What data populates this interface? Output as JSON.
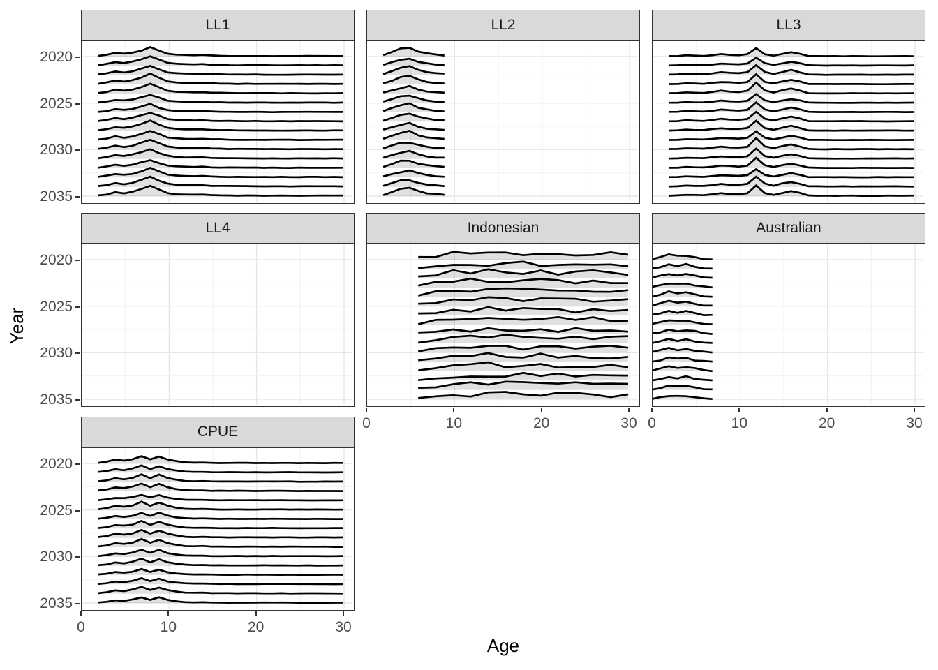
{
  "figure": {
    "background": "#ffffff",
    "x_axis_title": "Age",
    "y_axis_title": "Year"
  },
  "style": {
    "strip_bg": "#d9d9d9",
    "panel_border": "#333333",
    "grid_major": "#e7e7e7",
    "grid_minor": "#f3f3f3",
    "tick_mark_color": "#333333",
    "tick_label_color": "#4d4d4d",
    "ridge_stroke": "#000000",
    "ridge_fill": "rgba(0,0,0,0.12)"
  },
  "chart_data": {
    "type": "ridgeline",
    "title": "",
    "xlabel": "Age",
    "ylabel": "Year",
    "xlim": [
      0,
      30
    ],
    "x_ticks": [
      0,
      10,
      20,
      30
    ],
    "y_ticks": [
      2020,
      2025,
      2030,
      2035
    ],
    "grid": true,
    "years": [
      2020,
      2021,
      2022,
      2023,
      2024,
      2025,
      2026,
      2027,
      2028,
      2029,
      2030,
      2031,
      2032,
      2033,
      2034,
      2035
    ],
    "facet_layout": "3 columns, rows: [LL1, LL2, LL3], [LL4, Indonesian, Australian], [CPUE]",
    "facets": [
      {
        "label": "LL1",
        "row": 0,
        "col": 0,
        "show_y_axis": true,
        "show_x_axis": false,
        "age_min": 2,
        "age_step": 1,
        "noise": 0.06,
        "base": [
          0.06,
          0.18,
          0.38,
          0.28,
          0.42,
          0.68,
          1.0,
          0.62,
          0.3,
          0.2,
          0.16,
          0.14,
          0.17,
          0.11,
          0.09,
          0.07,
          0.06,
          0.06,
          0.06,
          0.05,
          0.05,
          0.05,
          0.05,
          0.05,
          0.05,
          0.05,
          0.05,
          0.05,
          0.05
        ]
      },
      {
        "label": "LL2",
        "row": 0,
        "col": 1,
        "show_y_axis": false,
        "show_x_axis": false,
        "age_min": 2,
        "age_step": 1,
        "noise": 0.09,
        "base": [
          0.12,
          0.4,
          0.72,
          0.8,
          0.5,
          0.28,
          0.18,
          0.12
        ]
      },
      {
        "label": "LL3",
        "row": 0,
        "col": 2,
        "show_y_axis": false,
        "show_x_axis": false,
        "age_min": 2,
        "age_step": 1,
        "noise": 0.05,
        "base": [
          0.04,
          0.06,
          0.14,
          0.1,
          0.08,
          0.18,
          0.28,
          0.22,
          0.18,
          0.28,
          1.05,
          0.3,
          0.12,
          0.32,
          0.5,
          0.3,
          0.06,
          0.04,
          0.04,
          0.04,
          0.04,
          0.04,
          0.04,
          0.04,
          0.04,
          0.04,
          0.04,
          0.04,
          0.04
        ]
      },
      {
        "label": "LL4",
        "row": 1,
        "col": 0,
        "show_y_axis": true,
        "show_x_axis": false,
        "age_min": null,
        "age_step": null,
        "noise": 0,
        "base": null
      },
      {
        "label": "Indonesian",
        "row": 1,
        "col": 1,
        "show_y_axis": false,
        "show_x_axis": true,
        "age_min": 6,
        "age_step": 2,
        "noise": 0.3,
        "base": [
          0.15,
          0.42,
          0.55,
          0.62,
          0.66,
          0.62,
          0.6,
          0.6,
          0.58,
          0.56,
          0.55,
          0.52,
          0.5
        ]
      },
      {
        "label": "Australian",
        "row": 1,
        "col": 2,
        "show_y_axis": false,
        "show_x_axis": true,
        "age_min": 0,
        "age_step": 1,
        "noise": 0.14,
        "base": [
          0.03,
          0.22,
          0.45,
          0.32,
          0.42,
          0.24,
          0.08,
          0.03
        ]
      },
      {
        "label": "CPUE",
        "row": 2,
        "col": 0,
        "show_y_axis": true,
        "show_x_axis": true,
        "age_min": 2,
        "age_step": 1,
        "noise": 0.05,
        "base": [
          0.06,
          0.16,
          0.38,
          0.3,
          0.45,
          0.78,
          0.42,
          0.72,
          0.4,
          0.22,
          0.12,
          0.09,
          0.11,
          0.06,
          0.05,
          0.05,
          0.05,
          0.05,
          0.05,
          0.05,
          0.05,
          0.05,
          0.05,
          0.04,
          0.04,
          0.04,
          0.04,
          0.04,
          0.04
        ]
      }
    ]
  }
}
